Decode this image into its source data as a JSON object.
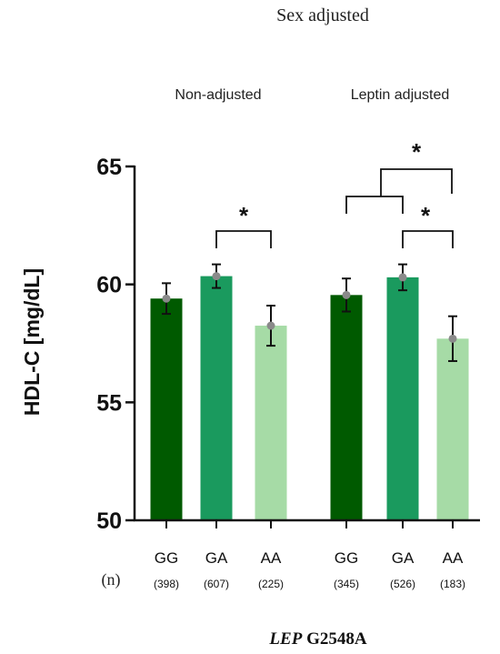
{
  "chart_data": {
    "type": "bar",
    "title": "Sex adjusted",
    "ylabel": "HDL-C [mg/dL]",
    "xlabel_italic": "LEP",
    "xlabel_rest": " G2548A",
    "ylim": [
      50,
      65
    ],
    "yticks": [
      "50",
      "55",
      "60",
      "65"
    ],
    "n_label": "(n)",
    "groups": [
      {
        "name": "Non-adjusted",
        "categories": [
          "GG",
          "GA",
          "AA"
        ],
        "n": [
          "(398)",
          "(607)",
          "(225)"
        ],
        "values": [
          59.4,
          60.35,
          58.25
        ],
        "errors": [
          0.65,
          0.5,
          0.85
        ],
        "colors": [
          "#005a00",
          "#1a9a5e",
          "#a6dba6"
        ]
      },
      {
        "name": "Leptin adjusted",
        "categories": [
          "GG",
          "GA",
          "AA"
        ],
        "n": [
          "(345)",
          "(526)",
          "(183)"
        ],
        "values": [
          59.55,
          60.3,
          57.7
        ],
        "errors": [
          0.7,
          0.55,
          0.95
        ],
        "colors": [
          "#005a00",
          "#1a9a5e",
          "#a6dba6"
        ]
      }
    ],
    "significance": [
      {
        "label": "*"
      },
      {
        "label": "*"
      },
      {
        "label": "*"
      }
    ]
  }
}
